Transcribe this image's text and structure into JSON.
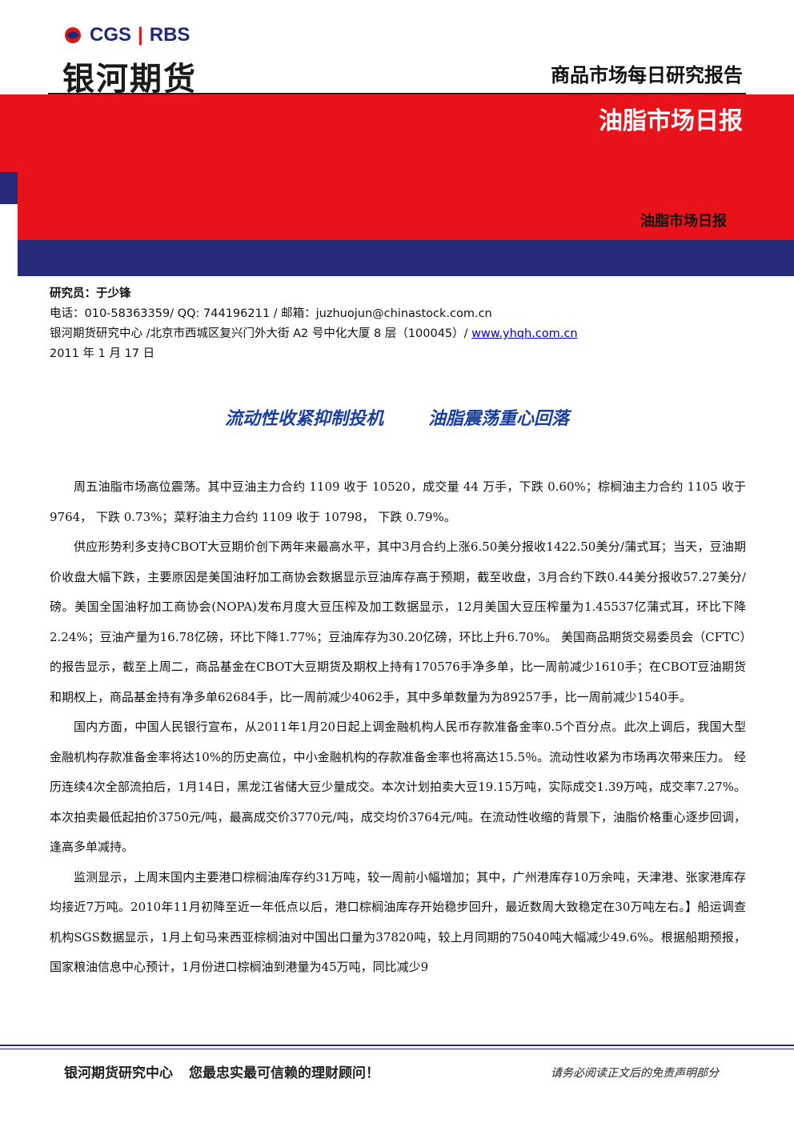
{
  "header": {
    "logo_left": "CGS",
    "logo_right": "RBS",
    "company": "银河期货",
    "report_type": "商品市场每日研究报告",
    "banner_title": "油脂市场日报",
    "banner_subtitle": "油脂市场日报"
  },
  "author": {
    "researcher": "研究员：于少锋",
    "contact": "电话：010-58363359/ QQ:  744196211 / 邮箱：juzhuojun@chinastock.com.cn",
    "address": "银河期货研究中心  /北京市西城区复兴门外大街 A2 号中化大厦 8 层（100045）/ ",
    "website": "www.yhqh.com.cn",
    "date": "2011 年 1 月 17 日"
  },
  "article": {
    "title": [
      "流动性收紧抑制投机",
      "油脂震荡重心回落"
    ],
    "paragraphs": [
      "周五油脂市场高位震荡。其中豆油主力合约 1109 收于 10520，成交量 44 万手，下跌 0.60%；棕榈油主力合约 1105 收于 9764，  下跌 0.73%；菜籽油主力合约 1109 收于 10798，  下跌 0.79%。",
      "供应形势利多支持CBOT大豆期价创下两年来最高水平，其中3月合约上涨6.50美分报收1422.50美分/蒲式耳；当天，豆油期价收盘大幅下跌，主要原因是美国油籽加工商协会数据显示豆油库存高于预期，截至收盘，3月合约下跌0.44美分报收57.27美分/磅。美国全国油籽加工商协会(NOPA)发布月度大豆压榨及加工数据显示，12月美国大豆压榨量为1.45537亿蒲式耳，环比下降2.24%；豆油产量为16.78亿磅，环比下降1.77%；豆油库存为30.20亿磅，环比上升6.70%。 美国商品期货交易委员会（CFTC）的报告显示，截至上周二，商品基金在CBOT大豆期货及期权上持有170576手净多单，比一周前减少1610手；在CBOT豆油期货和期权上，商品基金持有净多单62684手，比一周前减少4062手，其中多单数量为为89257手，比一周前减少1540手。",
      "国内方面，中国人民银行宣布，从2011年1月20日起上调金融机构人民币存款准备金率0.5个百分点。此次上调后，我国大型金融机构存款准备金率将达10%的历史高位，中小金融机构的存款准备金率也将高达15.5％。流动性收紧为市场再次带来压力。 经历连续4次全部流拍后，1月14日，黑龙江省储大豆少量成交。本次计划拍卖大豆19.15万吨，实际成交1.39万吨，成交率7.27%。本次拍卖最低起拍价3750元/吨，最高成交价3770元/吨，成交均价3764元/吨。在流动性收缩的背景下，油脂价格重心逐步回调，逢高多单减持。",
      "监测显示，上周末国内主要港口棕榈油库存约31万吨，较一周前小幅增加；其中，广州港库存10万余吨，天津港、张家港库存均接近7万吨。2010年11月初降至近一年低点以后，港口棕榈油库存开始稳步回升，最近数周大致稳定在30万吨左右。】船运调查机构SGS数据显示，1月上旬马来西亚棕榈油对中国出口量为37820吨，较上月同期的75040吨大幅减少49.6%。根据船期预报，国家粮油信息中心预计，1月份进口棕榈油到港量为45万吨，同比减少9"
    ]
  },
  "footer": {
    "slogan": [
      "银河期货研究中心",
      "您最忠实最可信赖的理财顾问！"
    ],
    "disclaimer": "请务必阅读正文后的免责声明部分"
  }
}
